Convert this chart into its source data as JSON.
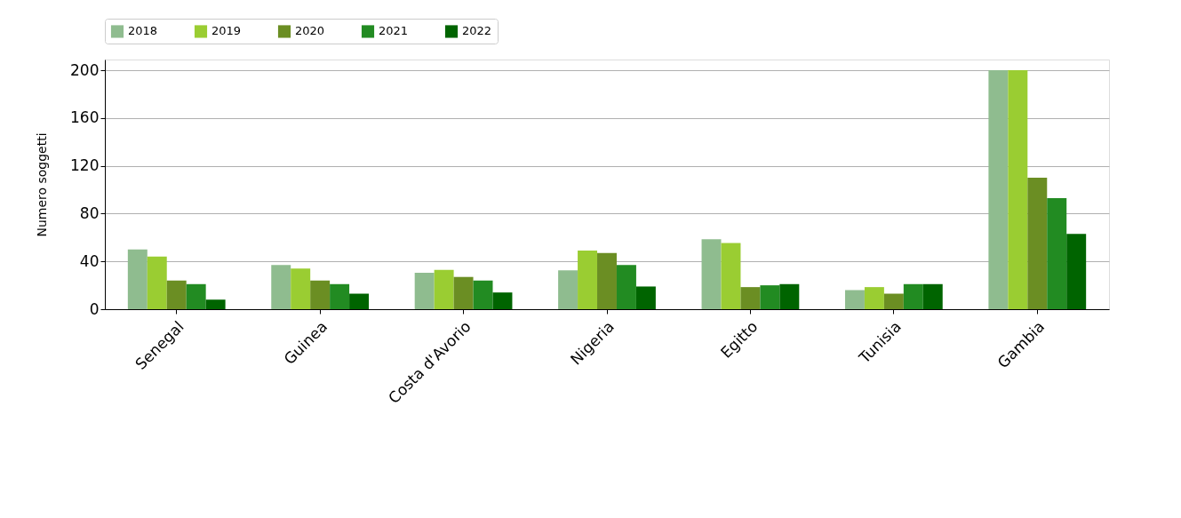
{
  "chart_data": {
    "type": "bar",
    "ylabel": "Numero soggetti",
    "categories": [
      "Senegal",
      "Guinea",
      "Costa d'Avorio",
      "Nigeria",
      "Egitto",
      "Tunisia",
      "Gambia"
    ],
    "series": [
      {
        "name": "2018",
        "color": "#8fbc8f",
        "values": [
          50,
          37,
          30.5,
          32.5,
          58.5,
          16,
          200
        ]
      },
      {
        "name": "2019",
        "color": "#9acd32",
        "values": [
          44,
          34,
          33,
          49,
          55.5,
          18.5,
          200
        ]
      },
      {
        "name": "2020",
        "color": "#6b8e23",
        "values": [
          24,
          24,
          27,
          47,
          18.5,
          13,
          110
        ]
      },
      {
        "name": "2021",
        "color": "#228b22",
        "values": [
          21,
          21,
          24,
          37,
          20,
          21,
          93
        ]
      },
      {
        "name": "2022",
        "color": "#006400",
        "values": [
          8,
          13,
          14,
          19,
          21,
          21,
          63
        ]
      }
    ],
    "ylim": [
      0,
      209
    ],
    "yticks": [
      0,
      40,
      80,
      120,
      160,
      200
    ],
    "grid": "y",
    "legend": "top"
  }
}
